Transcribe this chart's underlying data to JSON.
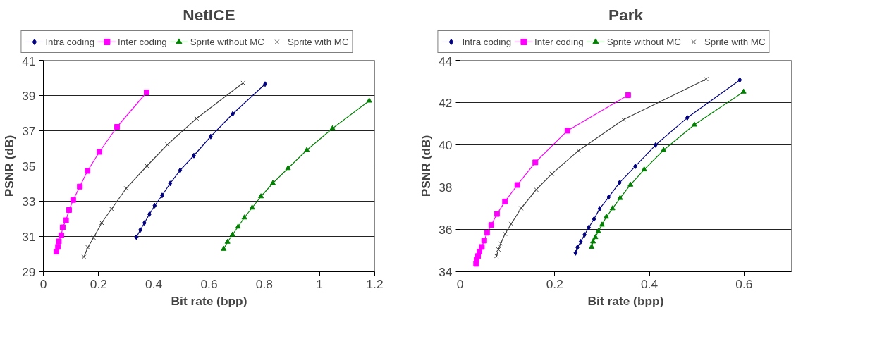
{
  "chart_data": [
    {
      "type": "line",
      "title": "NetICE",
      "xlabel": "Bit rate (bpp)",
      "ylabel": "PSNR (dB)",
      "xlim": [
        0,
        1.2
      ],
      "ylim": [
        29,
        41
      ],
      "xticks": [
        0,
        0.2,
        0.4,
        0.6,
        0.8,
        1,
        1.2
      ],
      "yticks": [
        29,
        31,
        33,
        35,
        37,
        39,
        41
      ],
      "grid": "y",
      "legend": "top",
      "series": [
        {
          "name": "Intra coding",
          "color": "#000080",
          "marker": "diamond",
          "x": [
            0.337,
            0.351,
            0.366,
            0.384,
            0.403,
            0.43,
            0.459,
            0.495,
            0.545,
            0.606,
            0.686,
            0.803
          ],
          "values": [
            30.96,
            31.37,
            31.77,
            32.26,
            32.75,
            33.33,
            34.01,
            34.75,
            35.59,
            36.67,
            37.96,
            39.65
          ]
        },
        {
          "name": "Inter coding",
          "color": "#ff00ff",
          "marker": "square",
          "x": [
            0.047,
            0.053,
            0.056,
            0.065,
            0.07,
            0.082,
            0.093,
            0.108,
            0.132,
            0.16,
            0.203,
            0.267,
            0.374
          ],
          "values": [
            30.14,
            30.41,
            30.72,
            31.07,
            31.52,
            31.92,
            32.5,
            33.07,
            33.83,
            34.72,
            35.8,
            37.22,
            39.18
          ]
        },
        {
          "name": "Sprite without MC",
          "color": "#008000",
          "marker": "triangle",
          "x": [
            0.653,
            0.667,
            0.685,
            0.705,
            0.728,
            0.756,
            0.788,
            0.831,
            0.886,
            0.954,
            1.047,
            1.18
          ],
          "values": [
            30.29,
            30.69,
            31.1,
            31.55,
            32.07,
            32.63,
            33.27,
            34.02,
            34.87,
            35.9,
            37.13,
            38.7
          ]
        },
        {
          "name": "Sprite with MC",
          "color": "#404040",
          "marker": "cross",
          "x": [
            0.147,
            0.161,
            0.182,
            0.211,
            0.247,
            0.3,
            0.375,
            0.449,
            0.555,
            0.723
          ],
          "values": [
            29.84,
            30.38,
            30.93,
            31.77,
            32.56,
            33.73,
            35.0,
            36.21,
            37.7,
            39.71
          ]
        }
      ]
    },
    {
      "type": "line",
      "title": "Park",
      "xlabel": "Bit rate (bpp)",
      "ylabel": "PSNR (dB)",
      "xlim": [
        0,
        0.7
      ],
      "ylim": [
        34,
        44
      ],
      "xticks": [
        0,
        0.2,
        0.4,
        0.6
      ],
      "yticks": [
        34,
        36,
        38,
        40,
        42,
        44
      ],
      "grid": "y",
      "legend": "top",
      "series": [
        {
          "name": "Intra coding",
          "color": "#000080",
          "marker": "diamond",
          "x": [
            0.244,
            0.248,
            0.255,
            0.263,
            0.272,
            0.283,
            0.295,
            0.314,
            0.337,
            0.37,
            0.413,
            0.48,
            0.591
          ],
          "values": [
            34.89,
            35.15,
            35.42,
            35.75,
            36.09,
            36.49,
            36.98,
            37.53,
            38.21,
            38.98,
            39.99,
            41.28,
            43.07
          ]
        },
        {
          "name": "Inter coding",
          "color": "#ff00ff",
          "marker": "square",
          "x": [
            0.034,
            0.035,
            0.038,
            0.041,
            0.046,
            0.051,
            0.057,
            0.066,
            0.078,
            0.095,
            0.121,
            0.159,
            0.227,
            0.355
          ],
          "values": [
            34.37,
            34.56,
            34.74,
            34.95,
            35.17,
            35.47,
            35.84,
            36.21,
            36.73,
            37.32,
            38.1,
            39.17,
            40.67,
            42.35
          ]
        },
        {
          "name": "Sprite without MC",
          "color": "#008000",
          "marker": "triangle",
          "x": [
            0.278,
            0.281,
            0.286,
            0.292,
            0.3,
            0.309,
            0.322,
            0.338,
            0.36,
            0.389,
            0.43,
            0.495,
            0.599
          ],
          "values": [
            35.17,
            35.42,
            35.63,
            35.91,
            36.22,
            36.59,
            36.99,
            37.48,
            38.11,
            38.83,
            39.75,
            40.95,
            42.51
          ]
        },
        {
          "name": "Sprite with MC",
          "color": "#404040",
          "marker": "cross",
          "x": [
            0.077,
            0.081,
            0.086,
            0.095,
            0.108,
            0.129,
            0.161,
            0.194,
            0.25,
            0.345,
            0.52
          ],
          "values": [
            34.74,
            35.05,
            35.33,
            35.79,
            36.26,
            37.0,
            37.88,
            38.63,
            39.72,
            41.19,
            43.11
          ]
        }
      ]
    }
  ]
}
